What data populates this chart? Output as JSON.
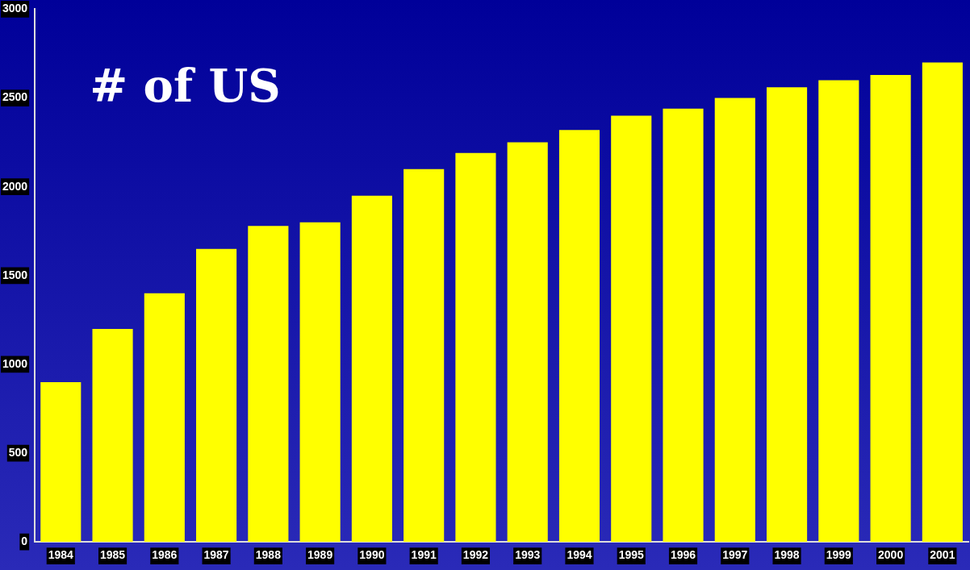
{
  "chart_data": {
    "type": "bar",
    "title": "# of US",
    "categories": [
      "1984",
      "1985",
      "1986",
      "1987",
      "1988",
      "1989",
      "1990",
      "1991",
      "1992",
      "1993",
      "1994",
      "1995",
      "1996",
      "1997",
      "1998",
      "1999",
      "2000",
      "2001"
    ],
    "values": [
      900,
      1200,
      1400,
      1650,
      1780,
      1800,
      1950,
      2100,
      2190,
      2250,
      2320,
      2400,
      2440,
      2500,
      2560,
      2600,
      2630,
      2700
    ],
    "color": "#ffff00",
    "ylim": [
      0,
      3000
    ],
    "yticks": [
      0,
      500,
      1000,
      1500,
      2000,
      2500,
      3000
    ],
    "grid": false
  }
}
